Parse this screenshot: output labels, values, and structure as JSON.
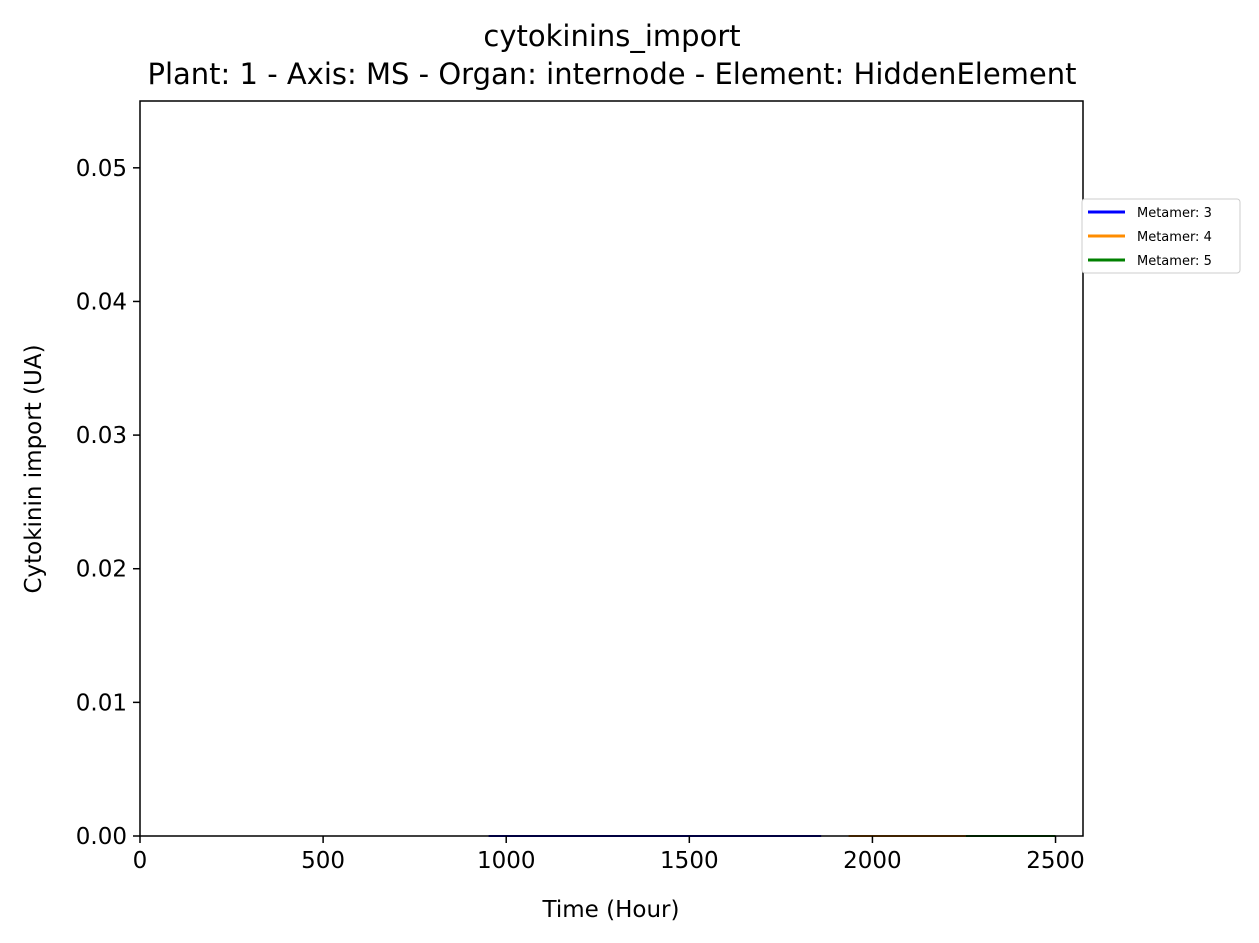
{
  "chart_data": {
    "type": "line",
    "title": "cytokinins_import",
    "subtitle": "Plant: 1 - Axis: MS - Organ: internode - Element: HiddenElement",
    "xlabel": "Time (Hour)",
    "ylabel": "Cytokinin import (UA)",
    "xlim": [
      0,
      2575
    ],
    "ylim": [
      0,
      0.055
    ],
    "xticks": [
      0,
      500,
      1000,
      1500,
      2000,
      2500
    ],
    "xtick_labels": [
      "0",
      "500",
      "1000",
      "1500",
      "2000",
      "2500"
    ],
    "yticks": [
      0,
      0.01,
      0.02,
      0.03,
      0.04,
      0.05
    ],
    "ytick_labels": [
      "0.00",
      "0.01",
      "0.02",
      "0.03",
      "0.04",
      "0.05"
    ],
    "grid": false,
    "legend_position": "outside-right-top",
    "series": [
      {
        "name": "Metamer: 3",
        "color": "#0000ff",
        "x": [
          952,
          1860
        ],
        "y": [
          0,
          0
        ]
      },
      {
        "name": "Metamer: 4",
        "color": "#ff8c00",
        "x": [
          1935,
          2255
        ],
        "y": [
          0,
          0
        ]
      },
      {
        "name": "Metamer: 5",
        "color": "#008000",
        "x": [
          2255,
          2500
        ],
        "y": [
          0,
          0
        ]
      }
    ]
  }
}
